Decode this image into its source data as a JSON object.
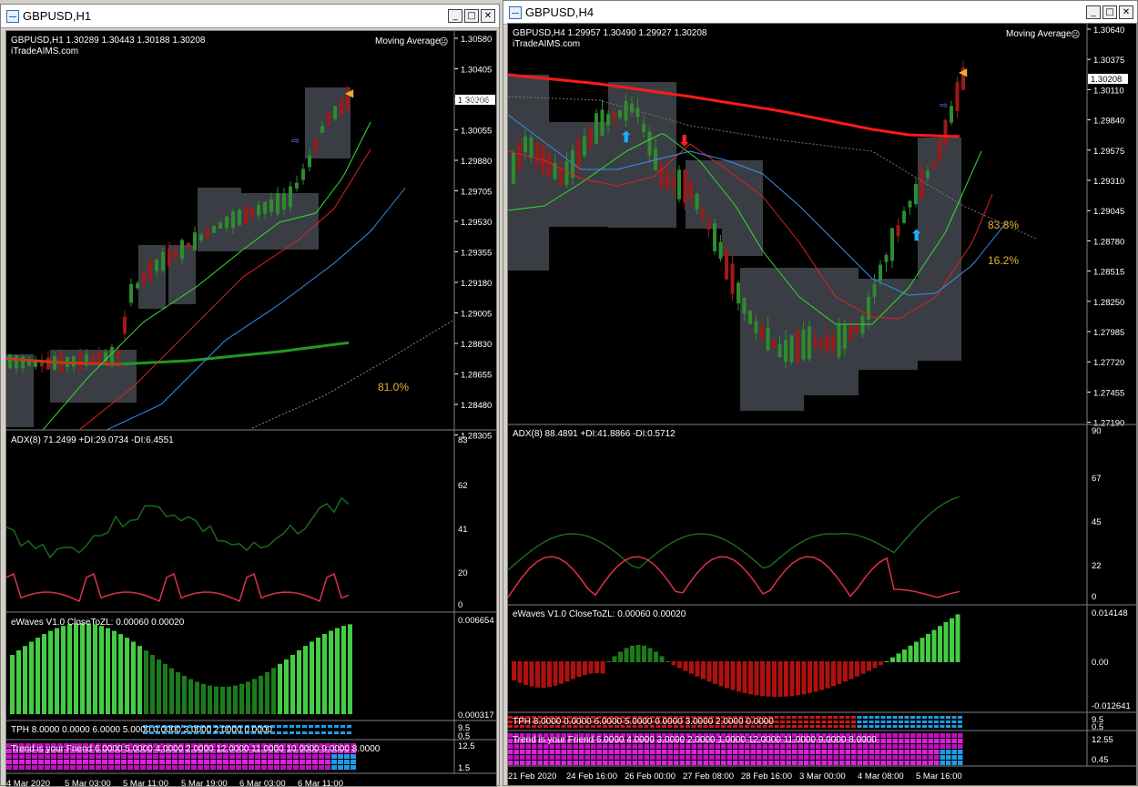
{
  "windows": [
    {
      "title": "GBPUSD,H1",
      "buttons": [
        "_",
        "□",
        "✕"
      ],
      "main": {
        "header": "GBPUSD,H1  1.30289 1.30443 1.30188 1.30208",
        "brand": "iTradeAIMS.com",
        "indicator_name": "Moving Average",
        "price_ticks": [
          "1.30580",
          "1.30405",
          "1.30230",
          "1.30055",
          "1.29880",
          "1.29705",
          "1.29530",
          "1.29355",
          "1.29180",
          "1.29005",
          "1.28830",
          "1.28655",
          "1.28480",
          "1.28305"
        ],
        "current_price": "1.30208",
        "percent_label": "81.0%"
      },
      "adx": {
        "label": "ADX(8) 71.2499 +DI:29.0734 -DI:6.4551",
        "ticks": [
          "83",
          "62",
          "41",
          "20",
          "0"
        ]
      },
      "ewaves": {
        "label": "eWaves V1.0 CloseToZL: 0.00060 0.00020",
        "ticks": [
          "0.006654",
          "0.000317"
        ]
      },
      "tph": {
        "label": "TPH 8.0000 0.0000 6.0000 5.0000 0.0000 3.0000 2.0000 0.0000",
        "ticks": [
          "9.5",
          "0.5"
        ]
      },
      "trend": {
        "label": "Trend is your Friend 6.0000 5.0000 4.0000 2.0000 12.0000 11.0000 10.0000 9.0000 8.0000",
        "ticks": [
          "12.5",
          "1.5"
        ]
      },
      "time_ticks": [
        "4 Mar 2020",
        "5 Mar 03:00",
        "5 Mar 11:00",
        "5 Mar 19:00",
        "6 Mar 03:00",
        "6 Mar 11:00"
      ]
    },
    {
      "title": "GBPUSD,H4",
      "buttons": [
        "_",
        "□",
        "✕"
      ],
      "main": {
        "header": "GBPUSD,H4  1.29957 1.30490 1.29927 1.30208",
        "brand": "iTradeAIMS.com",
        "indicator_name": "Moving Average",
        "price_ticks": [
          "1.30640",
          "1.30375",
          "1.30110",
          "1.29840",
          "1.29575",
          "1.29310",
          "1.29045",
          "1.28780",
          "1.28515",
          "1.28250",
          "1.27985",
          "1.27720",
          "1.27455",
          "1.27190"
        ],
        "current_price": "1.30208",
        "percent_label_1": "83.8%",
        "percent_label_2": "16.2%"
      },
      "adx": {
        "label": "ADX(8) 88.4891 +DI:41.8866 -DI:0.5712",
        "ticks": [
          "90",
          "67",
          "45",
          "22",
          "0"
        ]
      },
      "ewaves": {
        "label": "eWaves V1.0 CloseToZL: 0.00060 0.00020",
        "ticks": [
          "0.014148",
          "0.00",
          "-0.012641"
        ]
      },
      "tph": {
        "label": "TPH 8.0000 0.0000 6.0000 5.0000 0.0000 3.0000 2.0000 0.0000",
        "ticks": [
          "9.5",
          "0.5"
        ]
      },
      "trend": {
        "label": "Trend is your Friend 6.0000 4.0000 3.0000 2.0000 1.0000 12.0000 11.0000 9.0000 8.0000",
        "ticks": [
          "12.55",
          "0.45"
        ]
      },
      "time_ticks": [
        "21 Feb 2020",
        "24 Feb 16:00",
        "26 Feb 00:00",
        "27 Feb 08:00",
        "28 Feb 16:00",
        "3 Mar 00:00",
        "4 Mar 08:00",
        "5 Mar 16:00"
      ]
    }
  ],
  "colors": {
    "bull": "#2e8b2e",
    "bear": "#a01818",
    "ma_red_thick": "#ff1a1a",
    "ma_green_thick": "#1f9a1f",
    "ma_green": "#33dd33",
    "ma_red": "#dd2222",
    "ma_blue": "#3a8ff0",
    "box": "#3a3e44",
    "adx_green": "#1a6a1a",
    "adx_red": "#e0304a",
    "percent": "#e8b030",
    "ew_green": "#44cc44",
    "ew_darkgreen": "#1c7a1c",
    "ew_red": "#b01010",
    "tph_blue": "#1c9ce8",
    "trend_magenta": "#e020e0"
  }
}
